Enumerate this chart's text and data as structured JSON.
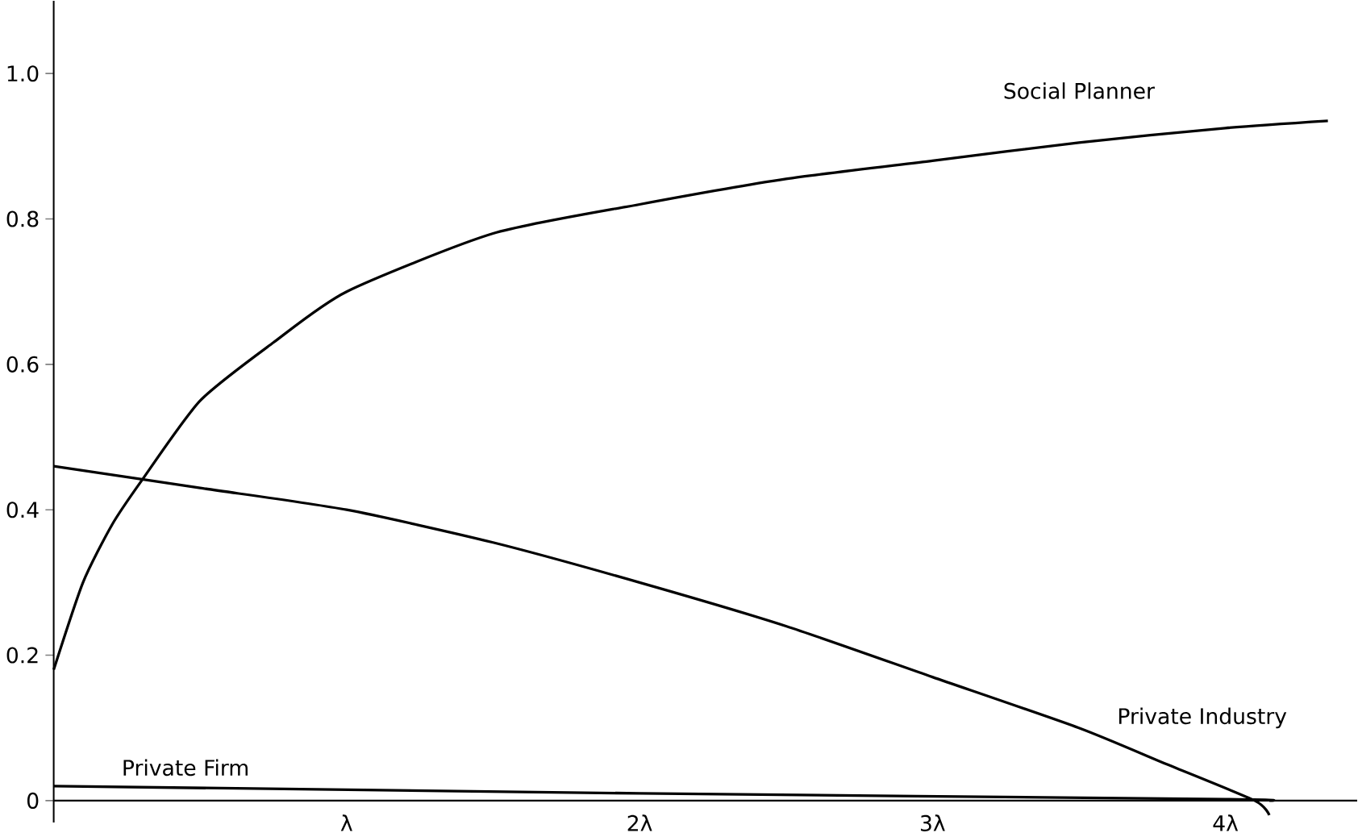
{
  "chart_data": {
    "type": "line",
    "xlim": [
      0,
      4.45
    ],
    "ylim": [
      -0.03,
      1.1
    ],
    "xticks": [
      {
        "value": 1,
        "label": "λ"
      },
      {
        "value": 2,
        "label": "2λ"
      },
      {
        "value": 3,
        "label": "3λ"
      },
      {
        "value": 4,
        "label": "4λ"
      }
    ],
    "yticks": [
      0,
      0.2,
      0.4,
      0.6,
      0.8,
      {
        "value": 1.0,
        "label": "1.0"
      }
    ],
    "grid": false,
    "marker": "none",
    "line_style": "solid",
    "series": [
      {
        "name": "Social Planner",
        "color": "#000000",
        "x": [
          0,
          0.1,
          0.2,
          0.3,
          0.5,
          0.75,
          1,
          1.5,
          2,
          2.5,
          3,
          3.5,
          4,
          4.35
        ],
        "values": [
          0.18,
          0.3,
          0.38,
          0.44,
          0.55,
          0.63,
          0.7,
          0.78,
          0.82,
          0.855,
          0.88,
          0.905,
          0.925,
          0.935
        ]
      },
      {
        "name": "Private Industry",
        "color": "#000000",
        "x": [
          0,
          0.5,
          1,
          1.5,
          2,
          2.5,
          3,
          3.5,
          3.8,
          4.1,
          4.15
        ],
        "values": [
          0.46,
          0.43,
          0.4,
          0.355,
          0.3,
          0.24,
          0.17,
          0.1,
          0.05,
          0,
          -0.02
        ]
      },
      {
        "name": "Private Firm",
        "color": "#000000",
        "x": [
          0,
          2,
          4,
          4.15
        ],
        "values": [
          0.02,
          0.01,
          0.002,
          0
        ]
      }
    ]
  }
}
